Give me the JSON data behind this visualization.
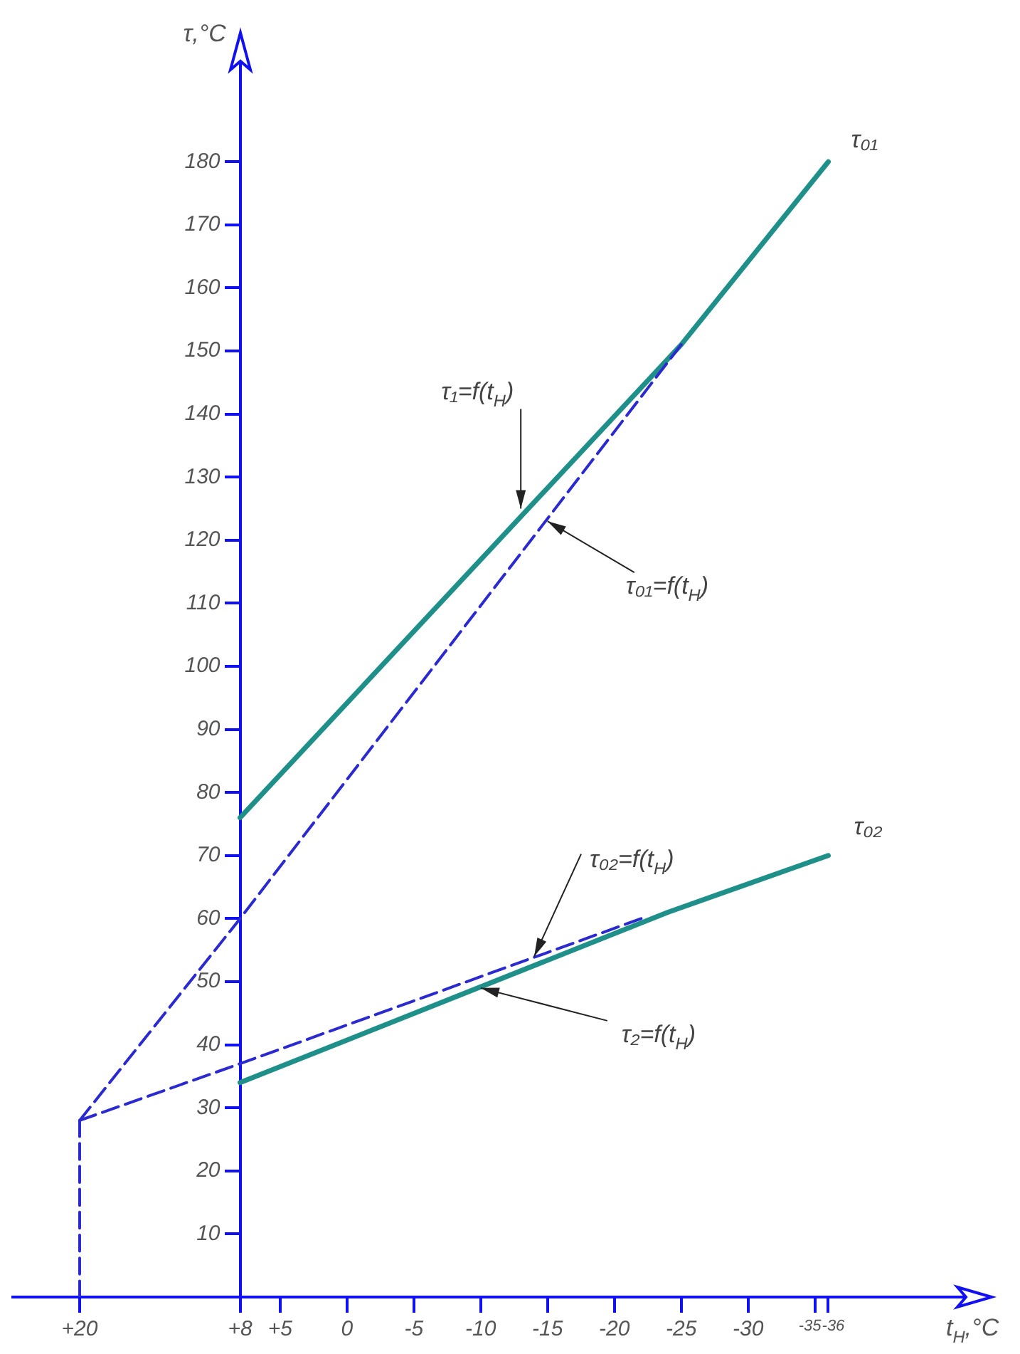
{
  "chart_data": {
    "type": "line",
    "xlabel": "t$_{Н}$,°C",
    "ylabel": "τ,°C",
    "xlim": [
      25,
      -48
    ],
    "ylim": [
      0,
      200
    ],
    "xticks": [
      {
        "value": 20,
        "label": "+20"
      },
      {
        "value": 8,
        "label": "+8"
      },
      {
        "value": 5,
        "label": "+5"
      },
      0,
      -5,
      -10,
      -15,
      -20,
      -25,
      -30,
      -35,
      -36
    ],
    "yticks": [
      10,
      20,
      30,
      40,
      50,
      60,
      70,
      80,
      90,
      100,
      110,
      120,
      130,
      140,
      150,
      160,
      170,
      180
    ],
    "grid": false,
    "marker": "none",
    "series": [
      {
        "color": "#1f8f8a",
        "line_style": "solid",
        "x": [
          8,
          -25,
          -36
        ],
        "values": [
          76,
          151,
          180
        ]
      },
      {
        "color": "#2a2ad0",
        "line_style": "dashed",
        "x": [
          20,
          8,
          -25
        ],
        "values": [
          28,
          60,
          151
        ]
      },
      {
        "color": "#1f8f8a",
        "line_style": "solid",
        "x": [
          8,
          -24,
          -36
        ],
        "values": [
          34,
          61,
          70
        ]
      },
      {
        "color": "#2a2ad0",
        "line_style": "dashed",
        "x": [
          20,
          8,
          -22
        ],
        "values": [
          28,
          37,
          60
        ]
      },
      {
        "color": "#2a2ad0",
        "line_style": "dashed",
        "x": [
          20,
          20
        ],
        "values": [
          0,
          28
        ]
      }
    ],
    "annotations": [
      {
        "text": "τ₁=f(t$_{Н}$)",
        "x": -13,
        "y": 125
      },
      {
        "text": "τ₀₁=f(t$_{Н}$)",
        "x": -15,
        "y": 123
      },
      {
        "text": "τ₀₂=f(t$_{Н}$)",
        "x": -14,
        "y": 54
      },
      {
        "text": "τ₂=f(t$_{Н}$)",
        "x": -10,
        "y": 49
      },
      {
        "text": "τ₀₁",
        "x": -36,
        "y": 180
      },
      {
        "text": "τ₀₂",
        "x": -36,
        "y": 70
      }
    ]
  }
}
